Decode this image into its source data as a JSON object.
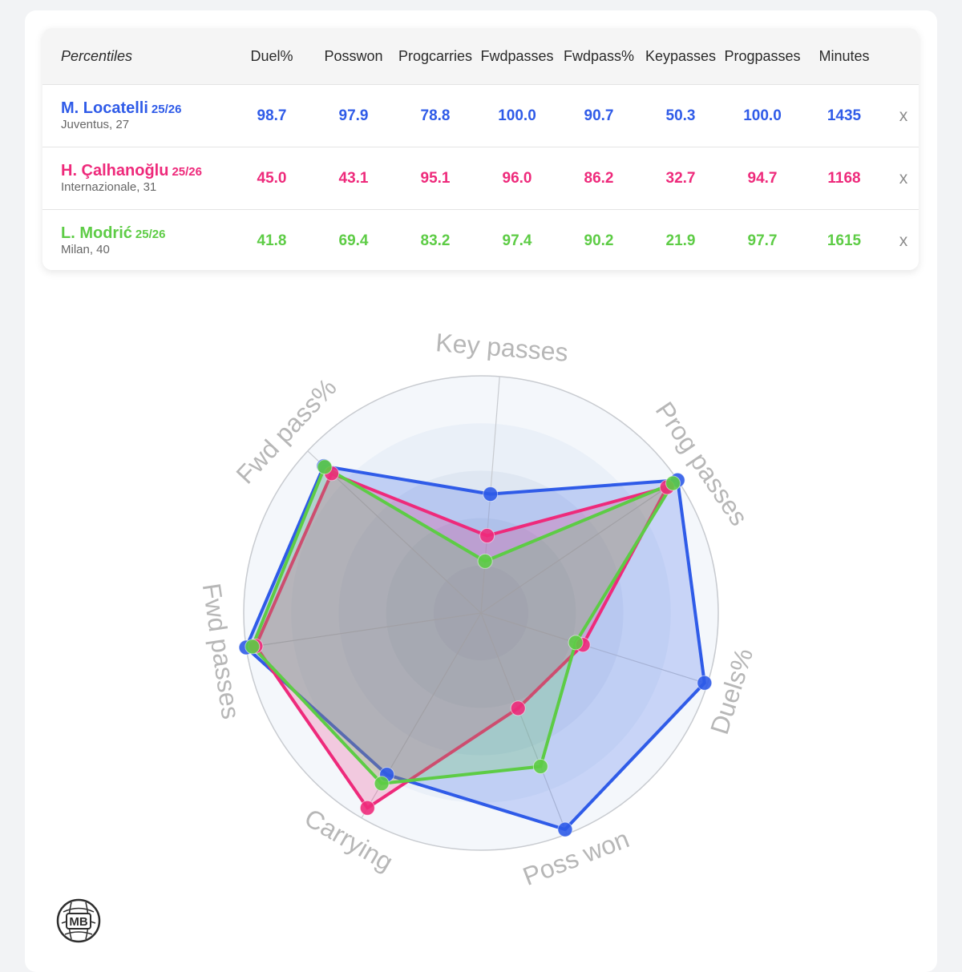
{
  "table": {
    "header_label": "Percentiles",
    "columns": [
      {
        "line1": "Duel%",
        "line2": ""
      },
      {
        "line1": "Poss",
        "line2": "won"
      },
      {
        "line1": "Prog",
        "line2": "carries"
      },
      {
        "line1": "Fwd",
        "line2": "passes"
      },
      {
        "line1": "Fwd",
        "line2": "pass%"
      },
      {
        "line1": "Key",
        "line2": "passes"
      },
      {
        "line1": "Prog",
        "line2": "passes"
      },
      {
        "line1": "Minutes",
        "line2": ""
      }
    ],
    "remove_label": "x",
    "players": [
      {
        "name": "M. Locatelli",
        "season": "25/26",
        "info": "Juventus, 27",
        "color": "#2f5be8",
        "values": [
          "98.7",
          "97.9",
          "78.8",
          "100.0",
          "90.7",
          "50.3",
          "100.0",
          "1435"
        ]
      },
      {
        "name": "H. Çalhanoğlu",
        "season": "25/26",
        "info": "Internazionale, 31",
        "color": "#ee2a7b",
        "values": [
          "45.0",
          "43.1",
          "95.1",
          "96.0",
          "86.2",
          "32.7",
          "94.7",
          "1168"
        ]
      },
      {
        "name": "L. Modrić",
        "season": "25/26",
        "info": "Milan, 40",
        "color": "#5dcc45",
        "values": [
          "41.8",
          "69.4",
          "83.2",
          "97.4",
          "90.2",
          "21.9",
          "97.7",
          "1615"
        ]
      }
    ]
  },
  "chart_data": {
    "type": "radar",
    "axes": [
      "Key passes",
      "Prog passes",
      "Duels%",
      "Poss won",
      "Carrying",
      "Fwd passes",
      "Fwd pass%"
    ],
    "range": [
      0,
      100
    ],
    "series": [
      {
        "name": "M. Locatelli",
        "color": "#2f5be8",
        "values": [
          50.3,
          100.0,
          98.7,
          97.9,
          78.8,
          100.0,
          90.7
        ]
      },
      {
        "name": "H. Çalhanoğlu",
        "color": "#ee2a7b",
        "values": [
          32.7,
          94.7,
          45.0,
          43.1,
          95.1,
          96.0,
          86.2
        ]
      },
      {
        "name": "L. Modrić",
        "color": "#5dcc45",
        "values": [
          21.9,
          97.7,
          41.8,
          69.4,
          83.2,
          97.4,
          90.2
        ]
      }
    ]
  },
  "logo": {
    "text": "MB"
  },
  "colors": {
    "grid": "#c8cbd0",
    "axis_label": "#b7b7b7",
    "background_rings": [
      "#f4f7fb",
      "#eaf0f8",
      "#dfe7f2"
    ]
  }
}
